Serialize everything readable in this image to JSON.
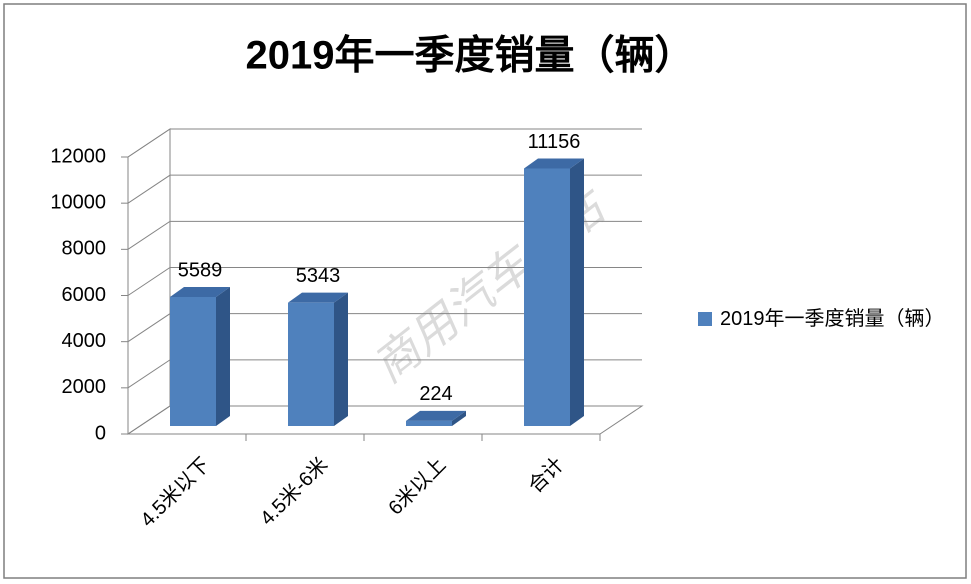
{
  "chart_data": {
    "type": "bar3d",
    "title": "2019年一季度销量（辆）",
    "categories": [
      "4.5米以下",
      "4.5米-6米",
      "6米以上",
      "合计"
    ],
    "series": [
      {
        "name": "2019年一季度销量（辆）",
        "color": "#4f81bd",
        "values": [
          5589,
          5343,
          224,
          11156
        ]
      }
    ],
    "ylim": [
      0,
      12000
    ],
    "yticks": [
      0,
      2000,
      4000,
      6000,
      8000,
      10000,
      12000
    ],
    "grid": true,
    "legend": "right",
    "watermark": "商用汽车总站"
  }
}
